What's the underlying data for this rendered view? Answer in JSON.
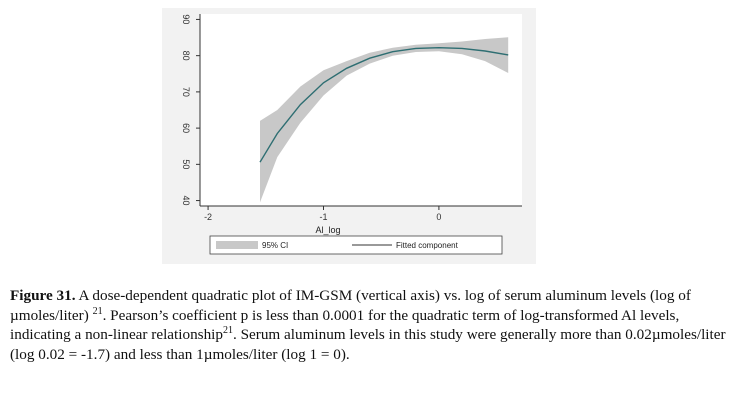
{
  "chart_data": {
    "type": "line",
    "title": "",
    "xlabel": "Al_log",
    "ylabel": "",
    "xlim": [
      -2.07,
      0.72
    ],
    "ylim": [
      38.5,
      91.5
    ],
    "x_ticks": [
      -2,
      -1,
      0
    ],
    "x_tick_labels": [
      "-2",
      "-1",
      "0"
    ],
    "y_ticks": [
      40,
      50,
      60,
      70,
      80,
      90
    ],
    "y_tick_labels": [
      "40",
      "50",
      "60",
      "70",
      "80",
      "90"
    ],
    "grid": false,
    "legend_placement": "bottom",
    "series": [
      {
        "name": "Fitted component",
        "kind": "line",
        "color": "#2e6e72",
        "x": [
          -1.55,
          -1.4,
          -1.2,
          -1.0,
          -0.8,
          -0.6,
          -0.4,
          -0.2,
          0.0,
          0.2,
          0.4,
          0.6
        ],
        "y": [
          50.6,
          58.5,
          66.5,
          72.5,
          76.5,
          79.3,
          81.1,
          82.0,
          82.2,
          82.0,
          81.3,
          80.2
        ]
      },
      {
        "name": "95% CI",
        "kind": "band",
        "color": "#c8c8c8",
        "x": [
          -1.55,
          -1.4,
          -1.2,
          -1.0,
          -0.8,
          -0.6,
          -0.4,
          -0.2,
          0.0,
          0.2,
          0.4,
          0.6
        ],
        "y_low": [
          39.5,
          52.0,
          61.5,
          69.0,
          74.5,
          77.8,
          80.0,
          81.0,
          81.2,
          80.4,
          78.5,
          75.2
        ],
        "y_high": [
          62.0,
          65.0,
          71.5,
          76.0,
          78.5,
          80.8,
          82.2,
          83.0,
          83.4,
          83.9,
          84.6,
          85.1
        ]
      }
    ]
  },
  "caption": {
    "figure_label": "Figure 31.",
    "text_part1": " A dose-dependent quadratic plot of IM-GSM (vertical axis) vs. log of serum aluminum levels (log of µmoles/liter) ",
    "ref1": "21",
    "text_part2": ". Pearson’s coefficient p is less than 0.0001 for the quadratic term of log-transformed Al levels, indicating a non-linear relationship",
    "ref2": "21",
    "text_part3": ". Serum aluminum levels in this study were generally more than 0.02µmoles/liter (log 0.02 = -1.7) and less than 1µmoles/liter (log 1 = 0)."
  }
}
